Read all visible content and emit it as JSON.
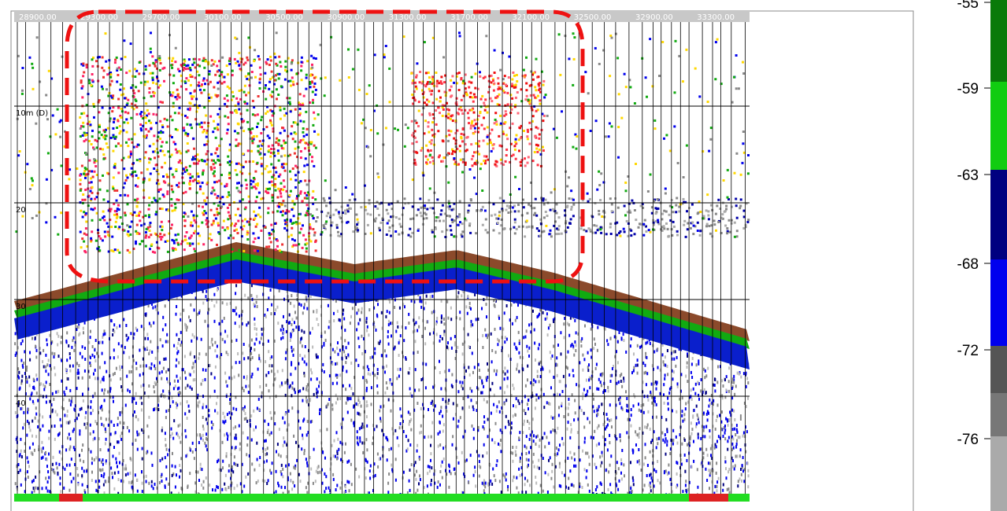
{
  "echogram": {
    "distance_labels": [
      "28900.00",
      "29300.00",
      "29700.00",
      "30100.00",
      "30500.00",
      "30900.00",
      "31300.00",
      "31700.00",
      "32100.00",
      "32500.00",
      "32900.00",
      "33300.00"
    ],
    "depth_labels": [
      "10m (D)",
      "20",
      "30",
      "40"
    ]
  },
  "color_scale": {
    "labels": [
      "-55",
      "-59",
      "-63",
      "-68",
      "-72",
      "-76"
    ]
  }
}
